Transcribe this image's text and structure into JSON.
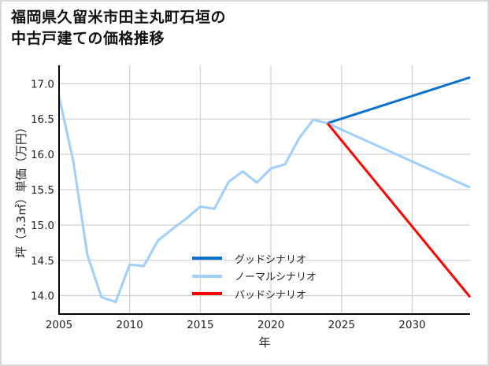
{
  "title_lines": [
    "福岡県久留米市田主丸町石垣の",
    "中古戸建ての価格推移"
  ],
  "colors": {
    "good": "#0a72c8",
    "normal": "#9fcffa",
    "bad": "#ff0000",
    "grid": "#d3d3d3",
    "axis": "#000000"
  },
  "chart_data": {
    "type": "line",
    "title": "福岡県久留米市田主丸町石垣の中古戸建ての価格推移",
    "xlabel": "年",
    "ylabel": "坪（3.3㎡）単価（万円）",
    "xlim": [
      2005,
      2034.1
    ],
    "ylim": [
      13.74,
      17.26
    ],
    "x_ticks": [
      2005,
      2010,
      2015,
      2020,
      2025,
      2030
    ],
    "y_ticks": [
      14.0,
      14.5,
      15.0,
      15.5,
      16.0,
      16.5,
      17.0
    ],
    "y_tick_labels": [
      "14.0",
      "14.5",
      "15.0",
      "15.5",
      "16.0",
      "16.5",
      "17.0"
    ],
    "grid": true,
    "legend_position": "lower center",
    "series": [
      {
        "name": "グッドシナリオ",
        "color": "#0a72c8",
        "x": [
          2024,
          2034.1
        ],
        "values": [
          16.44,
          17.09
        ]
      },
      {
        "name": "ノーマルシナリオ",
        "color": "#9fcffa",
        "x": [
          2005,
          2006,
          2007,
          2008,
          2009,
          2010,
          2011,
          2012,
          2013,
          2014,
          2015,
          2016,
          2017,
          2018,
          2019,
          2020,
          2021,
          2022,
          2023,
          2024,
          2034.1
        ],
        "values": [
          16.82,
          15.91,
          14.58,
          13.98,
          13.91,
          14.44,
          14.42,
          14.78,
          14.94,
          15.09,
          15.26,
          15.23,
          15.61,
          15.76,
          15.6,
          15.8,
          15.86,
          16.23,
          16.49,
          16.44,
          15.53
        ]
      },
      {
        "name": "バッドシナリオ",
        "color": "#ff0000",
        "x": [
          2024,
          2034.1
        ],
        "values": [
          16.44,
          13.98
        ]
      }
    ]
  }
}
